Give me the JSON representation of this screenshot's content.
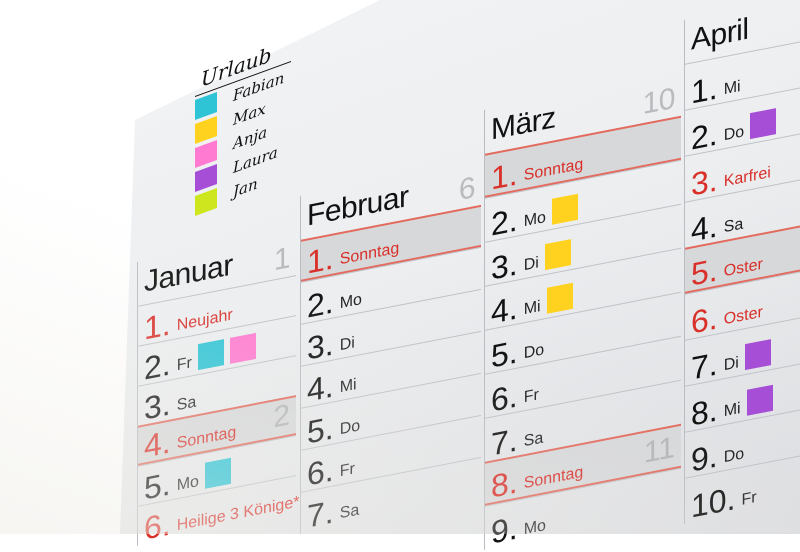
{
  "legend": {
    "title": "Urlaub",
    "people": [
      {
        "name": "Fabian",
        "color": "#2ec4d6"
      },
      {
        "name": "Max",
        "color": "#ffd21f"
      },
      {
        "name": "Anja",
        "color": "#ff7ad0"
      },
      {
        "name": "Laura",
        "color": "#a64fd6"
      },
      {
        "name": "Jan",
        "color": "#cde61e"
      }
    ]
  },
  "colors": {
    "holiday_red": "#d9302a",
    "sunday_band": "#d7d8da"
  },
  "months": [
    {
      "name": "Januar",
      "week": "1",
      "days": [
        {
          "num": "1.",
          "label": "Neujahr",
          "red": true
        },
        {
          "num": "2.",
          "label": "Fr",
          "marks": [
            "#2ec4d6",
            "#ff7ad0"
          ]
        },
        {
          "num": "3.",
          "label": "Sa"
        },
        {
          "num": "4.",
          "label": "Sonntag",
          "red": true,
          "sunday": true,
          "week": "2"
        },
        {
          "num": "5.",
          "label": "Mo",
          "marks": [
            "#2ec4d6"
          ]
        },
        {
          "num": "6.",
          "label": "Heilige 3 Könige*",
          "red": true
        }
      ]
    },
    {
      "name": "Februar",
      "week": "6",
      "days": [
        {
          "num": "1.",
          "label": "Sonntag",
          "red": true,
          "sunday": true
        },
        {
          "num": "2.",
          "label": "Mo"
        },
        {
          "num": "3.",
          "label": "Di"
        },
        {
          "num": "4.",
          "label": "Mi"
        },
        {
          "num": "5.",
          "label": "Do"
        },
        {
          "num": "6.",
          "label": "Fr"
        },
        {
          "num": "7.",
          "label": "Sa"
        }
      ]
    },
    {
      "name": "März",
      "week": "10",
      "days": [
        {
          "num": "1.",
          "label": "Sonntag",
          "red": true,
          "sunday": true
        },
        {
          "num": "2.",
          "label": "Mo",
          "marks": [
            "#ffd21f"
          ]
        },
        {
          "num": "3.",
          "label": "Di",
          "marks": [
            "#ffd21f"
          ]
        },
        {
          "num": "4.",
          "label": "Mi",
          "marks": [
            "#ffd21f"
          ]
        },
        {
          "num": "5.",
          "label": "Do"
        },
        {
          "num": "6.",
          "label": "Fr"
        },
        {
          "num": "7.",
          "label": "Sa"
        },
        {
          "num": "8.",
          "label": "Sonntag",
          "red": true,
          "sunday": true,
          "week": "11"
        },
        {
          "num": "9.",
          "label": "Mo"
        }
      ]
    },
    {
      "name": "April",
      "week": "",
      "days": [
        {
          "num": "1.",
          "label": "Mi"
        },
        {
          "num": "2.",
          "label": "Do",
          "marks": [
            "#a64fd6"
          ]
        },
        {
          "num": "3.",
          "label": "Karfrei",
          "red": true
        },
        {
          "num": "4.",
          "label": "Sa"
        },
        {
          "num": "5.",
          "label": "Oster",
          "red": true,
          "sunday": true
        },
        {
          "num": "6.",
          "label": "Oster",
          "red": true
        },
        {
          "num": "7.",
          "label": "Di",
          "marks": [
            "#a64fd6"
          ]
        },
        {
          "num": "8.",
          "label": "Mi",
          "marks": [
            "#a64fd6"
          ]
        },
        {
          "num": "9.",
          "label": "Do"
        },
        {
          "num": "10.",
          "label": "Fr"
        }
      ]
    }
  ]
}
